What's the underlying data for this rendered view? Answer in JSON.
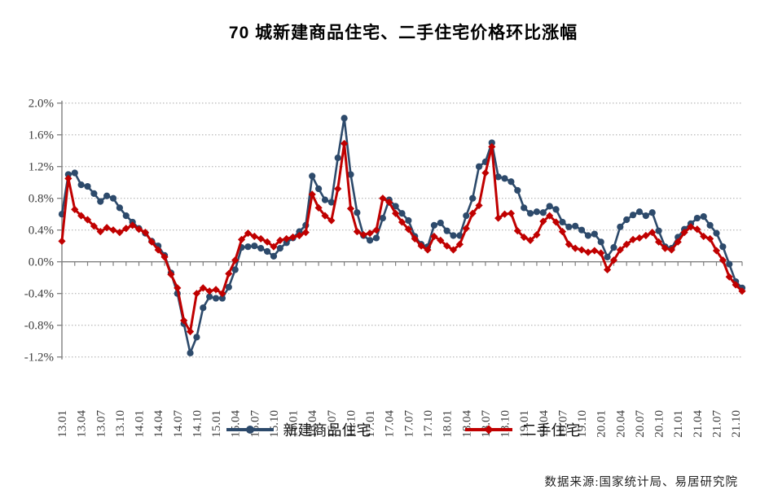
{
  "title": "70 城新建商品住宅、二手住宅价格环比涨幅",
  "source_note": "数据来源:国家统计局、易居研究院",
  "colors": {
    "new_home": "#2d4a6b",
    "second_hand": "#c00000",
    "grid": "#a9a9a9",
    "axis": "#808080",
    "tick_text": "#3c3c3c"
  },
  "legend": [
    {
      "label": "新建商品住宅",
      "marker": "circle",
      "color": "#2d4a6b"
    },
    {
      "label": "二手住宅",
      "marker": "diamond",
      "color": "#c00000"
    }
  ],
  "y_axis": {
    "tick_labels": [
      "2.0%",
      "1.6%",
      "1.2%",
      "0.8%",
      "0.4%",
      "0.0%",
      "-0.4%",
      "-0.8%",
      "-1.2%"
    ],
    "max": 2.0,
    "min": -1.2,
    "step": 0.4
  },
  "chart_data": {
    "type": "line",
    "title": "70 城新建商品住宅、二手住宅价格环比涨幅",
    "xlabel": "",
    "ylabel": "",
    "ylim": [
      -1.2,
      2.0
    ],
    "grid": "horizontal-dotted",
    "legend_position": "bottom",
    "x_label_every": 3,
    "categories": [
      "13.01",
      "13.02",
      "13.03",
      "13.04",
      "13.05",
      "13.06",
      "13.07",
      "13.08",
      "13.09",
      "13.10",
      "13.11",
      "13.12",
      "14.01",
      "14.02",
      "14.03",
      "14.04",
      "14.05",
      "14.06",
      "14.07",
      "14.08",
      "14.09",
      "14.10",
      "14.11",
      "14.12",
      "15.01",
      "15.02",
      "15.03",
      "15.04",
      "15.05",
      "15.06",
      "15.07",
      "15.08",
      "15.09",
      "15.10",
      "15.11",
      "15.12",
      "16.01",
      "16.02",
      "16.03",
      "16.04",
      "16.05",
      "16.06",
      "16.07",
      "16.08",
      "16.09",
      "16.10",
      "16.11",
      "16.12",
      "17.01",
      "17.02",
      "17.03",
      "17.04",
      "17.05",
      "17.06",
      "17.07",
      "17.08",
      "17.09",
      "17.10",
      "17.11",
      "17.12",
      "18.01",
      "18.02",
      "18.03",
      "18.04",
      "18.05",
      "18.06",
      "18.07",
      "18.08",
      "18.09",
      "18.10",
      "18.11",
      "18.12",
      "19.01",
      "19.02",
      "19.03",
      "19.04",
      "19.05",
      "19.06",
      "19.07",
      "19.08",
      "19.09",
      "19.10",
      "19.11",
      "19.12",
      "20.01",
      "20.02",
      "20.03",
      "20.04",
      "20.05",
      "20.06",
      "20.07",
      "20.08",
      "20.09",
      "20.10",
      "20.11",
      "20.12",
      "21.01",
      "21.02",
      "21.03",
      "21.04",
      "21.05",
      "21.06",
      "21.07",
      "21.08",
      "21.09",
      "21.10",
      "21.11"
    ],
    "series": [
      {
        "name": "新建商品住宅",
        "marker": "circle",
        "color": "#2d4a6b",
        "values": [
          0.6,
          1.1,
          1.12,
          0.97,
          0.95,
          0.86,
          0.76,
          0.83,
          0.8,
          0.68,
          0.58,
          0.5,
          0.42,
          0.36,
          0.26,
          0.2,
          0.08,
          -0.14,
          -0.4,
          -0.78,
          -1.15,
          -0.95,
          -0.58,
          -0.44,
          -0.46,
          -0.46,
          -0.32,
          -0.1,
          0.18,
          0.19,
          0.2,
          0.17,
          0.13,
          0.07,
          0.17,
          0.24,
          0.3,
          0.38,
          0.46,
          1.08,
          0.92,
          0.78,
          0.75,
          1.31,
          1.81,
          1.1,
          0.62,
          0.33,
          0.27,
          0.3,
          0.55,
          0.78,
          0.7,
          0.61,
          0.52,
          0.32,
          0.22,
          0.19,
          0.46,
          0.49,
          0.39,
          0.33,
          0.33,
          0.58,
          0.8,
          1.2,
          1.26,
          1.5,
          1.07,
          1.05,
          1.01,
          0.9,
          0.68,
          0.61,
          0.63,
          0.62,
          0.7,
          0.66,
          0.5,
          0.44,
          0.45,
          0.4,
          0.33,
          0.35,
          0.25,
          0.06,
          0.18,
          0.44,
          0.53,
          0.59,
          0.63,
          0.58,
          0.62,
          0.39,
          0.19,
          0.17,
          0.31,
          0.41,
          0.48,
          0.55,
          0.57,
          0.46,
          0.36,
          0.19,
          -0.03,
          -0.25,
          -0.33
        ]
      },
      {
        "name": "二手住宅",
        "marker": "diamond",
        "color": "#c00000",
        "values": [
          0.26,
          1.05,
          0.66,
          0.58,
          0.53,
          0.45,
          0.38,
          0.43,
          0.4,
          0.37,
          0.42,
          0.46,
          0.41,
          0.37,
          0.25,
          0.15,
          0.06,
          -0.16,
          -0.33,
          -0.74,
          -0.88,
          -0.4,
          -0.33,
          -0.37,
          -0.35,
          -0.4,
          -0.15,
          0.02,
          0.28,
          0.36,
          0.32,
          0.29,
          0.25,
          0.19,
          0.27,
          0.29,
          0.31,
          0.33,
          0.37,
          0.85,
          0.68,
          0.58,
          0.52,
          0.92,
          1.49,
          0.67,
          0.38,
          0.34,
          0.36,
          0.4,
          0.8,
          0.75,
          0.61,
          0.5,
          0.41,
          0.29,
          0.2,
          0.15,
          0.32,
          0.27,
          0.2,
          0.15,
          0.22,
          0.42,
          0.61,
          0.71,
          1.12,
          1.45,
          0.55,
          0.6,
          0.61,
          0.39,
          0.31,
          0.27,
          0.34,
          0.51,
          0.58,
          0.5,
          0.38,
          0.22,
          0.17,
          0.15,
          0.12,
          0.14,
          0.11,
          -0.1,
          0.02,
          0.15,
          0.22,
          0.28,
          0.3,
          0.33,
          0.37,
          0.25,
          0.17,
          0.15,
          0.25,
          0.37,
          0.44,
          0.41,
          0.32,
          0.29,
          0.14,
          0.02,
          -0.19,
          -0.29,
          -0.37
        ]
      }
    ]
  }
}
